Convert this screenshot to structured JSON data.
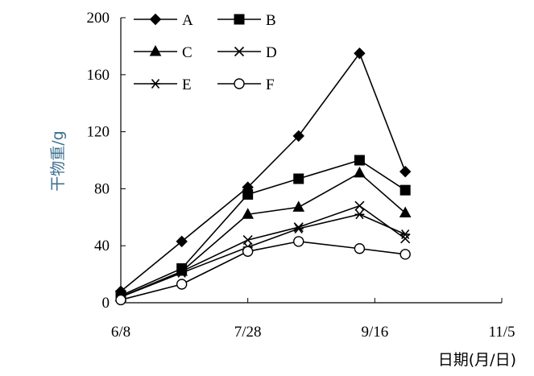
{
  "chart_data": {
    "type": "line",
    "xlabel": "日期(月/日)",
    "ylabel": "干物重/g",
    "x_ticks": [
      "6/8",
      "7/28",
      "9/16",
      "11/5"
    ],
    "x_range_days": [
      0,
      150
    ],
    "ylim": [
      0,
      200
    ],
    "y_ticks": [
      0,
      40,
      80,
      120,
      160,
      200
    ],
    "grid": false,
    "legend_position": "top-left",
    "x_dates": [
      "6/8",
      "7/2",
      "7/28",
      "8/17",
      "9/10",
      "9/28"
    ],
    "series": [
      {
        "name": "A",
        "marker": "diamond-filled",
        "values": [
          8,
          43,
          81,
          117,
          175,
          92
        ]
      },
      {
        "name": "B",
        "marker": "square-filled",
        "values": [
          5,
          24,
          76,
          87,
          100,
          79
        ]
      },
      {
        "name": "C",
        "marker": "triangle-filled",
        "values": [
          4,
          22,
          62,
          67,
          91,
          63
        ]
      },
      {
        "name": "D",
        "marker": "x",
        "values": [
          4,
          22,
          44,
          53,
          68,
          45
        ]
      },
      {
        "name": "E",
        "marker": "asterisk",
        "values": [
          4,
          21,
          39,
          52,
          62,
          48
        ]
      },
      {
        "name": "F",
        "marker": "circle-open",
        "values": [
          2,
          13,
          36,
          43,
          38,
          34
        ]
      }
    ]
  }
}
